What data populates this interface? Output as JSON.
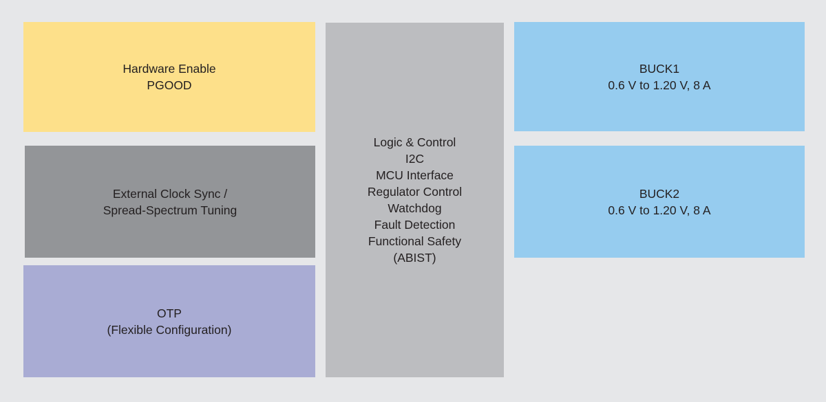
{
  "blocks": [
    {
      "lines": [
        "Hardware Enable",
        "PGOOD"
      ]
    },
    {
      "lines": [
        "External Clock Sync /",
        "Spread-Spectrum Tuning"
      ]
    },
    {
      "lines": [
        "OTP",
        "(Flexible Configuration)"
      ]
    },
    {
      "lines": [
        "Logic & Control",
        "I2C",
        "MCU Interface",
        "Regulator Control",
        "Watchdog",
        "Fault Detection",
        "Functional Safety",
        "(ABIST)"
      ]
    },
    {
      "lines": [
        "BUCK1",
        "0.6 V to 1.20 V, 8 A"
      ]
    },
    {
      "lines": [
        "BUCK2",
        "0.6 V to 1.20 V, 8 A"
      ]
    }
  ]
}
